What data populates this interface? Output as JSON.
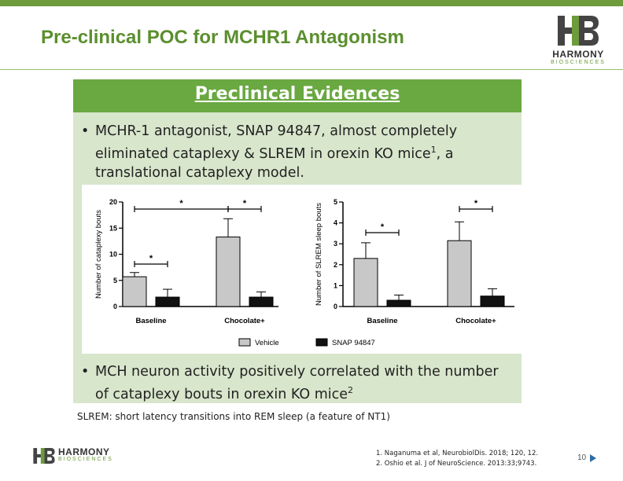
{
  "slide": {
    "title": "Pre-clinical POC for MCHR1 Antagonism",
    "page_number": "10"
  },
  "logo": {
    "word": "HARMONY",
    "sub": "BIOSCIENCES"
  },
  "panel": {
    "header": "Preclinical Evidences",
    "bullet1_text": "MCHR-1 antagonist, SNAP 94847, almost completely eliminated cataplexy & SLREM in orexin KO mice",
    "bullet1_sup": "1",
    "bullet1_tail": ", a translational cataplexy model.",
    "bullet2_text": "MCH neuron activity positively correlated with the number of cataplexy bouts in orexin KO mice",
    "bullet2_sup": "2"
  },
  "footnote": "SLREM: short latency transitions into REM sleep (a feature of NT1)",
  "references": [
    "1.    Naganuma et al, NeurobiolDis. 2018; 120, 12.",
    "2.    Oshio et al. J of NeuroScience. 2013:33;9743."
  ],
  "legend": [
    "Vehicle",
    "SNAP 94847"
  ],
  "colors": {
    "vehicle": "#c8c8c8",
    "snap": "#111111",
    "brand_green": "#6aa842"
  },
  "chart_data": [
    {
      "type": "bar",
      "ylabel": "Number of cataplexy bouts",
      "categories": [
        "Baseline",
        "Chocolate+"
      ],
      "ylim": [
        0,
        20
      ],
      "yticks": [
        "0",
        "5",
        "10",
        "15",
        "20"
      ],
      "series": [
        {
          "name": "Vehicle",
          "values": [
            5.7,
            13.3
          ],
          "errors": [
            0.8,
            3.5
          ]
        },
        {
          "name": "SNAP 94847",
          "values": [
            1.8,
            1.8
          ],
          "errors": [
            1.5,
            1.0
          ]
        }
      ],
      "annotations": [
        "*",
        "*",
        "*"
      ]
    },
    {
      "type": "bar",
      "ylabel": "Number of SLREM sleep bouts",
      "categories": [
        "Baseline",
        "Chocolate+"
      ],
      "ylim": [
        0,
        5
      ],
      "yticks": [
        "0",
        "1",
        "2",
        "3",
        "4",
        "5"
      ],
      "series": [
        {
          "name": "Vehicle",
          "values": [
            2.3,
            3.15
          ],
          "errors": [
            0.75,
            0.9
          ]
        },
        {
          "name": "SNAP 94847",
          "values": [
            0.3,
            0.5
          ],
          "errors": [
            0.25,
            0.35
          ]
        }
      ],
      "annotations": [
        "*",
        "*"
      ]
    }
  ]
}
